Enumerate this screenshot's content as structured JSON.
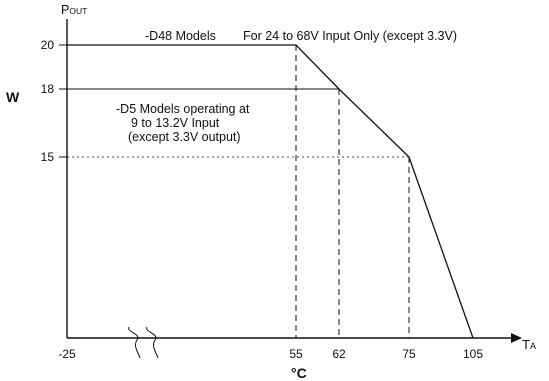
{
  "chart_data": {
    "type": "line",
    "y_axis_label": {
      "main": "P",
      "sub": "OUT"
    },
    "y_unit": "W",
    "x_axis_label": {
      "main": "T",
      "sub": "A"
    },
    "x_unit": "°C",
    "x_ticks": [
      "-25",
      "55",
      "62",
      "75",
      "105"
    ],
    "y_ticks": [
      "20",
      "18",
      "15"
    ],
    "axis_break": true,
    "series": [
      {
        "values": [
          [
            -25,
            20
          ],
          [
            55,
            20
          ],
          [
            62,
            18
          ],
          [
            75,
            15
          ],
          [
            105,
            0
          ]
        ]
      }
    ],
    "reference_lines": [
      {
        "level": 18,
        "from_x": -25,
        "to_x": 62,
        "style": "solid"
      },
      {
        "level": 15,
        "from_x": -25,
        "to_x": 75,
        "style": "dotted"
      }
    ],
    "drop_lines": [
      {
        "x": 55,
        "to_y": 20
      },
      {
        "x": 62,
        "to_y": 18
      },
      {
        "x": 75,
        "to_y": 15
      }
    ],
    "annotations": [
      {
        "text": "-D48 Models",
        "line": 1
      },
      {
        "text": "For 24 to 68V  Input Only (except 3.3V)",
        "line": 1
      },
      {
        "text": "-D5 Models operating at",
        "line": 1
      },
      {
        "text": "9 to 13.2V Input",
        "line": 2
      },
      {
        "text": "(except 3.3V output)",
        "line": 3
      }
    ]
  }
}
